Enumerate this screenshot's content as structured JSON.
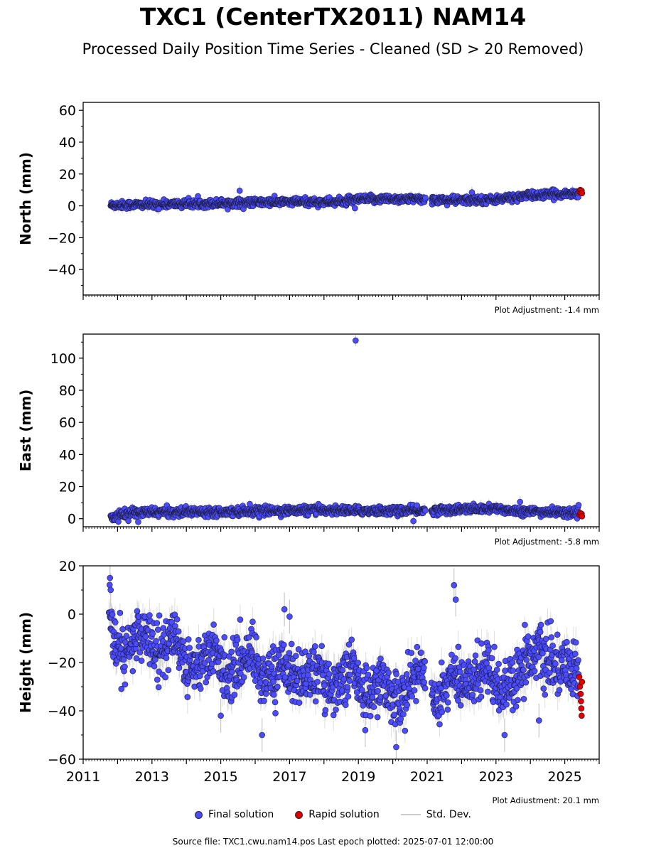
{
  "figure": {
    "title": "TXC1 (CenterTX2011) NAM14",
    "subtitle": "Processed Daily Position Time Series - Cleaned (SD > 20 Removed)",
    "source_text": "Source file: TXC1.cwu.nam14.pos  Last epoch plotted: 2025-07-01 12:00:00",
    "legend": [
      {
        "label": "Final solution",
        "color": "#4b4bff",
        "kind": "dot"
      },
      {
        "label": "Rapid solution",
        "color": "#e00000",
        "kind": "dot"
      },
      {
        "label": "Std. Dev.",
        "color": "#cccccc",
        "kind": "line"
      }
    ]
  },
  "colors": {
    "final": "#4b4bff",
    "rapid": "#e00000",
    "stddev": "#c8c8c8"
  },
  "chart_data": [
    {
      "type": "scatter",
      "name": "north",
      "ylabel": "North (mm)",
      "ylim": [
        -56,
        65
      ],
      "yticks": [
        -40,
        -20,
        0,
        20,
        40,
        60
      ],
      "xlim": [
        2011.0,
        2026.0
      ],
      "xticks": [
        2011,
        2013,
        2015,
        2017,
        2019,
        2021,
        2023,
        2025
      ],
      "show_xticklabels": false,
      "adjustment": "Plot Adjustment: -1.4 mm",
      "trend": [
        [
          2011.8,
          0.5
        ],
        [
          2013.0,
          0.8
        ],
        [
          2015.0,
          1.8
        ],
        [
          2017.0,
          2.5
        ],
        [
          2018.5,
          2.5
        ],
        [
          2019.0,
          4.0
        ],
        [
          2020.0,
          4.5
        ],
        [
          2021.0,
          4.0
        ],
        [
          2022.0,
          3.5
        ],
        [
          2023.0,
          4.0
        ],
        [
          2024.0,
          6.5
        ],
        [
          2025.5,
          8.0
        ]
      ],
      "scatter_sd": 1.2,
      "err_half": 2.5,
      "gaps": [
        [
          2020.95,
          2021.12
        ]
      ],
      "outliers": [
        [
          2015.55,
          9.5
        ],
        [
          2018.9,
          -1.5
        ],
        [
          2022.3,
          8.5
        ],
        [
          2013.2,
          -2.0
        ]
      ],
      "rapid": [
        [
          2025.42,
          9.0
        ],
        [
          2025.45,
          10.0
        ],
        [
          2025.47,
          8.5
        ],
        [
          2025.49,
          9.5
        ],
        [
          2025.5,
          8.0
        ]
      ]
    },
    {
      "type": "scatter",
      "name": "east",
      "ylabel": "East (mm)",
      "ylim": [
        -5,
        115
      ],
      "yticks": [
        0,
        20,
        40,
        60,
        80,
        100
      ],
      "xlim": [
        2011.0,
        2026.0
      ],
      "xticks": [
        2011,
        2013,
        2015,
        2017,
        2019,
        2021,
        2023,
        2025
      ],
      "show_xticklabels": false,
      "adjustment": "Plot Adjustment: -5.8 mm",
      "trend": [
        [
          2011.8,
          0.5
        ],
        [
          2012.3,
          3.5
        ],
        [
          2013.0,
          4.0
        ],
        [
          2015.0,
          4.5
        ],
        [
          2017.0,
          5.0
        ],
        [
          2018.0,
          5.5
        ],
        [
          2019.0,
          5.0
        ],
        [
          2020.0,
          5.0
        ],
        [
          2021.0,
          5.0
        ],
        [
          2022.0,
          6.0
        ],
        [
          2023.0,
          6.0
        ],
        [
          2024.0,
          4.5
        ],
        [
          2025.5,
          3.5
        ]
      ],
      "scatter_sd": 1.3,
      "err_half": 2.5,
      "gaps": [
        [
          2020.95,
          2021.12
        ]
      ],
      "outliers": [
        [
          2018.92,
          111.0
        ],
        [
          2023.7,
          10.5
        ],
        [
          2020.6,
          -1.5
        ],
        [
          2012.6,
          -2.0
        ]
      ],
      "rapid": [
        [
          2025.42,
          2.5
        ],
        [
          2025.45,
          3.5
        ],
        [
          2025.47,
          2.0
        ],
        [
          2025.49,
          3.0
        ],
        [
          2025.5,
          1.5
        ]
      ]
    },
    {
      "type": "scatter",
      "name": "height",
      "ylabel": "Height (mm)",
      "ylim": [
        -60,
        20
      ],
      "yticks": [
        -60,
        -40,
        -20,
        0,
        20
      ],
      "xlim": [
        2011.0,
        2026.0
      ],
      "xticks": [
        2011,
        2013,
        2015,
        2017,
        2019,
        2021,
        2023,
        2025
      ],
      "xticklabels": [
        "2011",
        "2013",
        "2015",
        "2017",
        "2019",
        "2021",
        "2023",
        "2025"
      ],
      "show_xticklabels": true,
      "adjustment": "Plot Adjustment: 20.1 mm",
      "trend": [
        [
          2011.75,
          0.0
        ],
        [
          2011.9,
          -12.0
        ],
        [
          2012.2,
          -18.0
        ],
        [
          2012.6,
          -8.0
        ],
        [
          2013.0,
          -10.0
        ],
        [
          2013.3,
          -16.0
        ],
        [
          2013.7,
          -8.0
        ],
        [
          2014.0,
          -22.0
        ],
        [
          2014.4,
          -20.0
        ],
        [
          2014.8,
          -15.0
        ],
        [
          2015.2,
          -25.0
        ],
        [
          2015.6,
          -20.0
        ],
        [
          2015.9,
          -14.0
        ],
        [
          2016.2,
          -27.0
        ],
        [
          2016.6,
          -24.0
        ],
        [
          2016.9,
          -20.0
        ],
        [
          2017.2,
          -28.0
        ],
        [
          2017.6,
          -24.0
        ],
        [
          2018.0,
          -27.0
        ],
        [
          2018.3,
          -30.0
        ],
        [
          2018.6,
          -26.0
        ],
        [
          2018.8,
          -20.0
        ],
        [
          2019.1,
          -33.0
        ],
        [
          2019.5,
          -30.0
        ],
        [
          2019.8,
          -28.0
        ],
        [
          2020.1,
          -37.0
        ],
        [
          2020.5,
          -30.0
        ],
        [
          2020.8,
          -20.0
        ],
        [
          2021.1,
          -35.0
        ],
        [
          2021.4,
          -33.0
        ],
        [
          2021.7,
          -25.0
        ],
        [
          2022.0,
          -30.0
        ],
        [
          2022.4,
          -26.0
        ],
        [
          2022.8,
          -20.0
        ],
        [
          2023.1,
          -32.0
        ],
        [
          2023.5,
          -27.0
        ],
        [
          2023.9,
          -18.0
        ],
        [
          2024.2,
          -15.0
        ],
        [
          2024.5,
          -20.0
        ],
        [
          2024.9,
          -22.0
        ],
        [
          2025.3,
          -24.0
        ]
      ],
      "scatter_sd": 5.5,
      "err_half": 5.0,
      "gaps": [
        [
          2020.95,
          2021.12
        ]
      ],
      "outliers": [
        [
          2011.78,
          15.0
        ],
        [
          2011.8,
          10.0
        ],
        [
          2016.2,
          -50.0
        ],
        [
          2016.85,
          2.0
        ],
        [
          2017.0,
          -1.0
        ],
        [
          2020.1,
          -55.0
        ],
        [
          2021.78,
          12.0
        ],
        [
          2021.83,
          6.0
        ],
        [
          2023.25,
          -50.0
        ],
        [
          2024.25,
          -44.0
        ],
        [
          2015.0,
          -42.0
        ],
        [
          2019.2,
          -48.0
        ]
      ],
      "rapid": [
        [
          2025.42,
          -26.0
        ],
        [
          2025.44,
          -30.0
        ],
        [
          2025.46,
          -33.0
        ],
        [
          2025.47,
          -36.0
        ],
        [
          2025.48,
          -39.0
        ],
        [
          2025.49,
          -42.0
        ],
        [
          2025.5,
          -28.0
        ]
      ]
    }
  ]
}
